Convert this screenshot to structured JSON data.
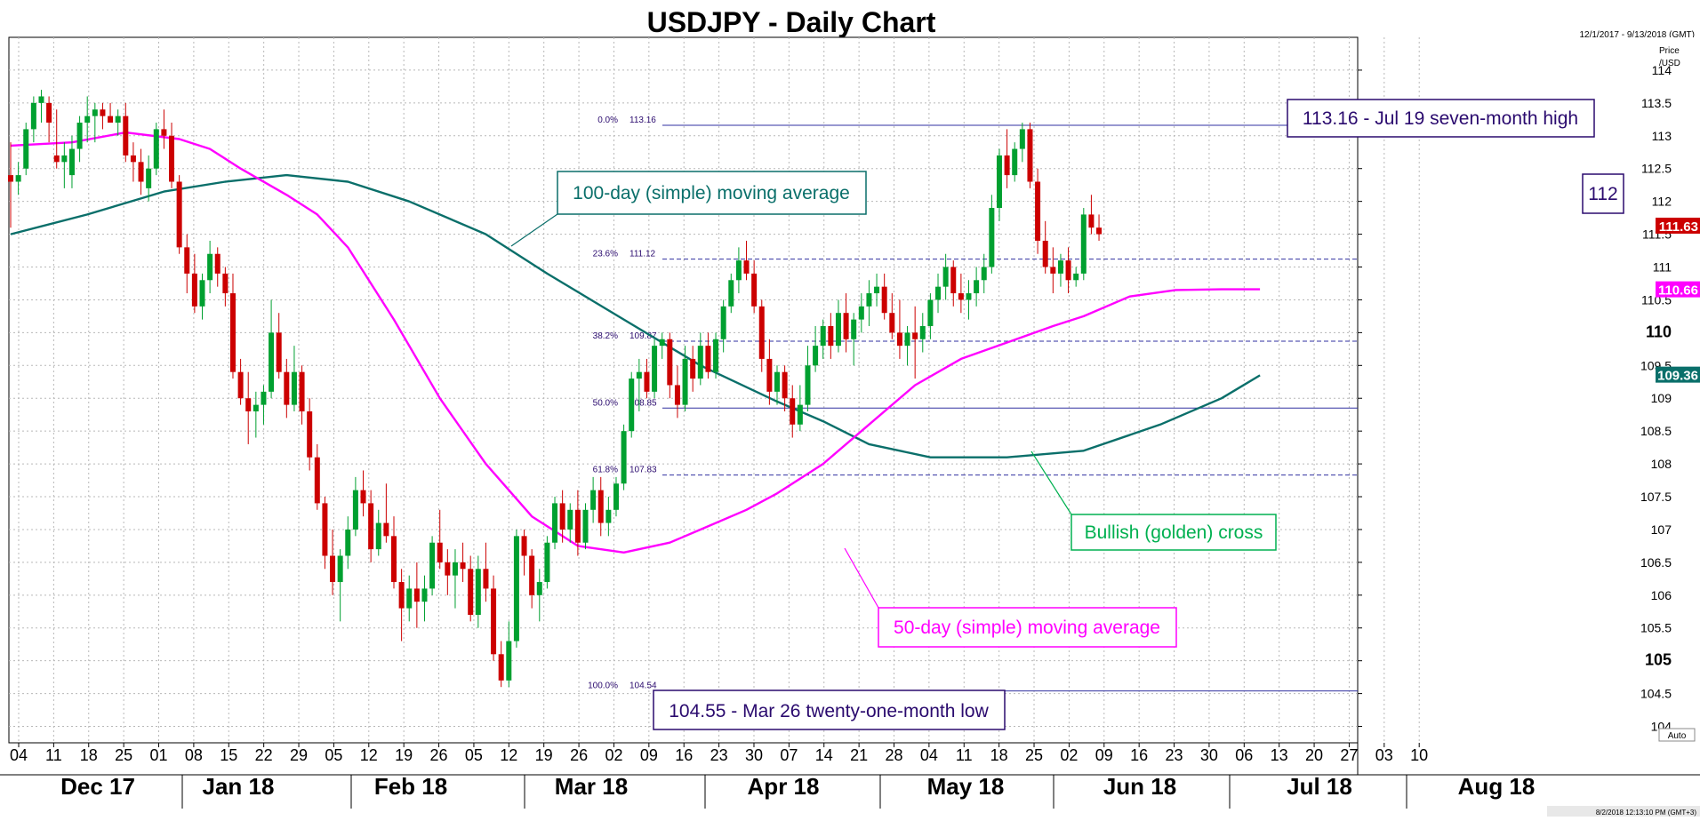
{
  "chart_data": {
    "type": "candlestick",
    "title": "USDJPY - Daily Chart",
    "date_range": "12/1/2017 - 9/13/2018 (GMT)",
    "price_axis_label": [
      "Price",
      "/USD"
    ],
    "ylim": [
      103.75,
      114.5
    ],
    "y_ticks": [
      "104",
      "104.5",
      "105",
      "105.5",
      "106",
      "106.5",
      "107",
      "107.5",
      "108",
      "108.5",
      "109",
      "109.5",
      "110",
      "110.5",
      "111",
      "111.5",
      "112",
      "112.5",
      "113",
      "113.5",
      "114"
    ],
    "y_ticks_bold": [
      "105",
      "110"
    ],
    "x_day_ticks": [
      "04",
      "11",
      "18",
      "25",
      "01",
      "08",
      "15",
      "22",
      "29",
      "05",
      "12",
      "19",
      "26",
      "05",
      "12",
      "19",
      "26",
      "02",
      "09",
      "16",
      "23",
      "30",
      "07",
      "14",
      "21",
      "28",
      "04",
      "11",
      "18",
      "25",
      "02",
      "09",
      "16",
      "23",
      "30",
      "06",
      "13",
      "20",
      "27",
      "03",
      "10"
    ],
    "month_labels": [
      "Dec 17",
      "Jan 18",
      "Feb 18",
      "Mar 18",
      "Apr 18",
      "May 18",
      "Jun 18",
      "Jul 18",
      "Aug 18"
    ],
    "auto_label": "Auto",
    "footer_stamp": "8/2/2018 12:13:10 PM (GMT+3)",
    "candles": [
      [
        112.4,
        112.9,
        111.6,
        112.3
      ],
      [
        112.3,
        112.6,
        112.1,
        112.4
      ],
      [
        112.5,
        113.2,
        112.4,
        113.1
      ],
      [
        113.1,
        113.6,
        112.9,
        113.5
      ],
      [
        113.5,
        113.7,
        113.2,
        113.6
      ],
      [
        113.5,
        113.6,
        112.9,
        113.2
      ],
      [
        112.7,
        113.4,
        112.5,
        112.6
      ],
      [
        112.6,
        112.9,
        112.2,
        112.7
      ],
      [
        112.4,
        113.0,
        112.2,
        112.8
      ],
      [
        112.8,
        113.3,
        112.6,
        113.2
      ],
      [
        113.2,
        113.6,
        112.9,
        113.3
      ],
      [
        113.3,
        113.5,
        112.9,
        113.4
      ],
      [
        113.4,
        113.5,
        113.1,
        113.3
      ],
      [
        113.3,
        113.5,
        113.2,
        113.2
      ],
      [
        113.2,
        113.4,
        113.0,
        113.3
      ],
      [
        113.3,
        113.5,
        112.6,
        112.7
      ],
      [
        112.7,
        112.9,
        112.3,
        112.6
      ],
      [
        112.6,
        112.8,
        112.1,
        112.3
      ],
      [
        112.2,
        112.7,
        112.0,
        112.5
      ],
      [
        112.5,
        113.2,
        112.4,
        113.1
      ],
      [
        113.1,
        113.4,
        112.8,
        113.0
      ],
      [
        113.0,
        113.2,
        112.2,
        112.3
      ],
      [
        112.3,
        112.4,
        111.2,
        111.3
      ],
      [
        111.3,
        111.5,
        110.6,
        110.9
      ],
      [
        110.9,
        111.2,
        110.3,
        110.4
      ],
      [
        110.4,
        110.9,
        110.2,
        110.8
      ],
      [
        110.8,
        111.4,
        110.6,
        111.2
      ],
      [
        111.2,
        111.3,
        110.7,
        110.9
      ],
      [
        110.9,
        111.0,
        110.4,
        110.6
      ],
      [
        110.6,
        110.9,
        109.3,
        109.4
      ],
      [
        109.4,
        109.6,
        108.9,
        109.0
      ],
      [
        109.0,
        109.4,
        108.3,
        108.8
      ],
      [
        108.8,
        109.1,
        108.4,
        108.9
      ],
      [
        108.9,
        109.2,
        108.6,
        109.1
      ],
      [
        109.1,
        110.5,
        109.0,
        110.0
      ],
      [
        110.0,
        110.3,
        109.3,
        109.4
      ],
      [
        109.4,
        109.6,
        108.7,
        108.9
      ],
      [
        108.9,
        109.8,
        108.8,
        109.4
      ],
      [
        109.4,
        109.5,
        108.6,
        108.8
      ],
      [
        108.8,
        109.0,
        107.9,
        108.1
      ],
      [
        108.1,
        108.3,
        107.3,
        107.4
      ],
      [
        107.4,
        107.5,
        106.4,
        106.6
      ],
      [
        106.6,
        107.0,
        106.0,
        106.2
      ],
      [
        106.2,
        106.7,
        105.6,
        106.6
      ],
      [
        106.6,
        107.2,
        106.4,
        107.0
      ],
      [
        107.0,
        107.8,
        106.9,
        107.6
      ],
      [
        107.6,
        107.9,
        107.2,
        107.4
      ],
      [
        107.4,
        107.6,
        106.5,
        106.7
      ],
      [
        106.7,
        107.3,
        106.6,
        107.1
      ],
      [
        107.1,
        107.7,
        106.8,
        106.9
      ],
      [
        106.9,
        107.2,
        106.1,
        106.2
      ],
      [
        106.2,
        106.4,
        105.3,
        105.8
      ],
      [
        105.8,
        106.3,
        105.6,
        106.1
      ],
      [
        106.1,
        106.5,
        105.5,
        105.9
      ],
      [
        105.9,
        106.3,
        105.6,
        106.1
      ],
      [
        106.1,
        106.9,
        106.0,
        106.8
      ],
      [
        106.8,
        107.3,
        106.4,
        106.5
      ],
      [
        106.5,
        106.7,
        106.0,
        106.3
      ],
      [
        106.3,
        106.7,
        105.8,
        106.5
      ],
      [
        106.5,
        106.8,
        106.2,
        106.4
      ],
      [
        106.4,
        106.6,
        105.6,
        105.7
      ],
      [
        105.7,
        106.6,
        105.5,
        106.4
      ],
      [
        106.4,
        106.8,
        105.9,
        106.1
      ],
      [
        106.1,
        106.3,
        105.0,
        105.1
      ],
      [
        105.1,
        105.3,
        104.6,
        104.7
      ],
      [
        104.7,
        105.6,
        104.6,
        105.3
      ],
      [
        105.3,
        107.0,
        105.2,
        106.9
      ],
      [
        106.9,
        107.0,
        106.3,
        106.6
      ],
      [
        106.6,
        106.7,
        105.8,
        106.0
      ],
      [
        106.0,
        106.4,
        105.6,
        106.2
      ],
      [
        106.2,
        106.9,
        106.1,
        106.8
      ],
      [
        106.8,
        107.5,
        106.7,
        107.4
      ],
      [
        107.4,
        107.6,
        106.8,
        107.0
      ],
      [
        107.0,
        107.4,
        106.8,
        107.3
      ],
      [
        107.3,
        107.6,
        106.6,
        106.8
      ],
      [
        106.8,
        107.4,
        106.7,
        107.3
      ],
      [
        107.3,
        107.8,
        107.1,
        107.6
      ],
      [
        107.6,
        107.8,
        106.9,
        107.1
      ],
      [
        107.1,
        107.5,
        106.9,
        107.3
      ],
      [
        107.3,
        107.8,
        107.2,
        107.7
      ],
      [
        107.7,
        108.6,
        107.6,
        108.5
      ],
      [
        108.5,
        109.4,
        108.4,
        109.3
      ],
      [
        109.3,
        109.6,
        108.8,
        109.4
      ],
      [
        109.4,
        109.6,
        109.0,
        109.1
      ],
      [
        109.1,
        109.9,
        109.0,
        109.8
      ],
      [
        109.8,
        110.0,
        109.6,
        109.9
      ],
      [
        109.9,
        110.0,
        109.0,
        109.2
      ],
      [
        109.2,
        109.5,
        108.7,
        108.9
      ],
      [
        108.9,
        109.8,
        108.8,
        109.6
      ],
      [
        109.6,
        109.8,
        109.1,
        109.3
      ],
      [
        109.3,
        110.0,
        109.2,
        109.8
      ],
      [
        109.8,
        110.0,
        109.3,
        109.4
      ],
      [
        109.4,
        110.0,
        109.3,
        109.9
      ],
      [
        109.9,
        110.5,
        109.7,
        110.4
      ],
      [
        110.4,
        110.9,
        110.3,
        110.8
      ],
      [
        110.8,
        111.3,
        110.6,
        111.1
      ],
      [
        111.1,
        111.4,
        110.8,
        110.9
      ],
      [
        110.9,
        111.1,
        110.3,
        110.4
      ],
      [
        110.4,
        110.5,
        109.4,
        109.6
      ],
      [
        109.6,
        109.9,
        108.9,
        109.1
      ],
      [
        109.1,
        109.5,
        108.9,
        109.4
      ],
      [
        109.4,
        109.5,
        108.8,
        109.0
      ],
      [
        109.0,
        109.2,
        108.4,
        108.6
      ],
      [
        108.6,
        109.2,
        108.5,
        108.9
      ],
      [
        108.9,
        109.8,
        108.8,
        109.5
      ],
      [
        109.5,
        110.1,
        109.4,
        109.8
      ],
      [
        109.8,
        110.2,
        109.6,
        110.1
      ],
      [
        110.1,
        110.3,
        109.6,
        109.8
      ],
      [
        109.8,
        110.5,
        109.7,
        110.3
      ],
      [
        110.3,
        110.6,
        109.7,
        109.9
      ],
      [
        109.9,
        110.3,
        109.5,
        110.2
      ],
      [
        110.2,
        110.6,
        110.0,
        110.4
      ],
      [
        110.4,
        110.8,
        110.1,
        110.6
      ],
      [
        110.6,
        110.9,
        110.4,
        110.7
      ],
      [
        110.7,
        110.9,
        110.2,
        110.3
      ],
      [
        110.3,
        110.6,
        109.9,
        110.0
      ],
      [
        110.0,
        110.5,
        109.6,
        109.8
      ],
      [
        109.8,
        110.1,
        109.5,
        110.0
      ],
      [
        110.0,
        110.4,
        109.3,
        109.9
      ],
      [
        109.9,
        110.3,
        109.7,
        110.1
      ],
      [
        110.1,
        110.6,
        109.9,
        110.5
      ],
      [
        110.5,
        110.9,
        110.3,
        110.7
      ],
      [
        110.7,
        111.2,
        110.5,
        111.0
      ],
      [
        111.0,
        111.1,
        110.4,
        110.6
      ],
      [
        110.6,
        110.9,
        110.3,
        110.5
      ],
      [
        110.5,
        110.8,
        110.2,
        110.6
      ],
      [
        110.6,
        111.0,
        110.4,
        110.8
      ],
      [
        110.8,
        111.2,
        110.6,
        111.0
      ],
      [
        111.0,
        112.1,
        110.9,
        111.9
      ],
      [
        111.9,
        112.8,
        111.7,
        112.7
      ],
      [
        112.7,
        113.1,
        112.2,
        112.4
      ],
      [
        112.4,
        112.9,
        112.3,
        112.8
      ],
      [
        112.8,
        113.2,
        112.6,
        113.1
      ],
      [
        113.1,
        113.2,
        112.2,
        112.3
      ],
      [
        112.3,
        112.5,
        111.2,
        111.4
      ],
      [
        111.4,
        111.7,
        110.9,
        111.0
      ],
      [
        111.0,
        111.3,
        110.6,
        110.9
      ],
      [
        110.9,
        111.2,
        110.7,
        111.1
      ],
      [
        111.1,
        111.3,
        110.6,
        110.8
      ],
      [
        110.8,
        111.0,
        110.7,
        110.9
      ],
      [
        110.9,
        111.9,
        110.8,
        111.8
      ],
      [
        111.8,
        112.1,
        111.5,
        111.6
      ],
      [
        111.6,
        111.8,
        111.4,
        111.5
      ]
    ],
    "series": [
      {
        "name": "100-day (simple) moving average",
        "color": "#0a6f6a",
        "x": [
          0,
          10,
          20,
          28,
          36,
          44,
          52,
          62,
          70,
          80,
          90,
          100,
          106,
          112,
          120,
          130,
          140,
          150,
          158,
          163
        ],
        "y": [
          111.5,
          111.8,
          112.15,
          112.3,
          112.4,
          112.3,
          112.0,
          111.5,
          110.9,
          110.2,
          109.5,
          108.95,
          108.65,
          108.3,
          108.1,
          108.1,
          108.2,
          108.6,
          109.0,
          109.35
        ]
      },
      {
        "name": "50-day (simple) moving average",
        "color": "#ff00ff",
        "x": [
          0,
          8,
          15,
          22,
          26,
          30,
          36,
          40,
          44,
          50,
          56,
          62,
          68,
          74,
          80,
          86,
          90,
          96,
          100,
          106,
          112,
          118,
          124,
          130,
          136,
          140,
          146,
          152,
          158,
          163
        ],
        "y": [
          112.85,
          112.9,
          113.05,
          112.95,
          112.8,
          112.5,
          112.1,
          111.8,
          111.3,
          110.2,
          109.0,
          108.0,
          107.2,
          106.75,
          106.65,
          106.8,
          107.0,
          107.3,
          107.55,
          108.0,
          108.6,
          109.2,
          109.6,
          109.85,
          110.1,
          110.25,
          110.55,
          110.65,
          110.66,
          110.66
        ]
      }
    ],
    "fibonacci": [
      {
        "pct": "0.0%",
        "price": "113.16",
        "value": 113.16
      },
      {
        "pct": "23.6%",
        "price": "111.12",
        "value": 111.12
      },
      {
        "pct": "38.2%",
        "price": "109.87",
        "value": 109.87
      },
      {
        "pct": "50.0%",
        "price": "108.85",
        "value": 108.85
      },
      {
        "pct": "61.8%",
        "price": "107.83",
        "value": 107.83
      },
      {
        "pct": "100.0%",
        "price": "104.54",
        "value": 104.54
      }
    ],
    "last_values": [
      {
        "label": "111.63",
        "value": 111.63,
        "color": "#cc0000"
      },
      {
        "label": "110.66",
        "value": 110.66,
        "color": "#ff00ff"
      },
      {
        "label": "109.36",
        "value": 109.36,
        "color": "#0a6f6a"
      }
    ],
    "annotations": [
      {
        "text": "113.16 - Jul 19 seven-month high",
        "color": "#2a0a6e"
      },
      {
        "text": "112",
        "color": "#2a0a6e"
      },
      {
        "text": "100-day (simple) moving average",
        "color": "#0a6f6a"
      },
      {
        "text": "Bullish (golden) cross",
        "color": "#00b050"
      },
      {
        "text": "50-day (simple) moving average",
        "color": "#ff00ff"
      },
      {
        "text": "104.55 - Mar 26 twenty-one-month low",
        "color": "#2a0a6e"
      }
    ],
    "colors": {
      "up": "#00a030",
      "down": "#cc0000"
    }
  }
}
